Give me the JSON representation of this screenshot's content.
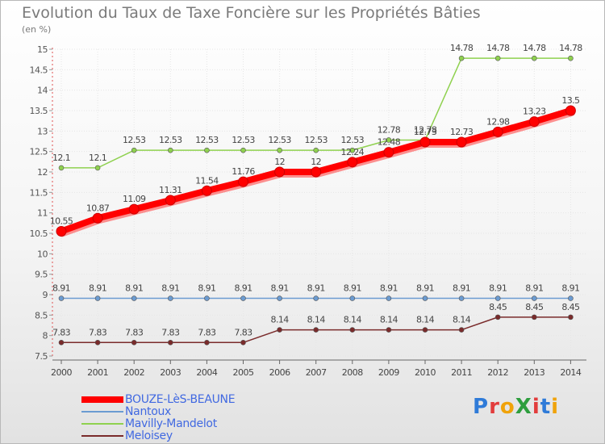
{
  "title": "Evolution du Taux de Taxe Foncière sur les Propriétés Bâties",
  "unit_label": "(en %)",
  "brand": {
    "text": "ProXiti",
    "colors": [
      "#2f7bd8",
      "#e23c3c",
      "#f0a30a",
      "#2e9e3e",
      "#e23c3c",
      "#2f7bd8",
      "#f0a30a"
    ]
  },
  "chart_data": {
    "type": "line",
    "title": "Evolution du Taux de Taxe Foncière sur les Propriétés Bâties",
    "ylabel": "(en %)",
    "xlabel": "",
    "ylim": [
      7.5,
      15
    ],
    "yticks": [
      "7.5",
      "8",
      "8.5",
      "9",
      "9.5",
      "10",
      "10.5",
      "11",
      "11.5",
      "12",
      "12.5",
      "13",
      "13.5",
      "14",
      "14.5",
      "15"
    ],
    "categories": [
      "2000",
      "2001",
      "2002",
      "2003",
      "2004",
      "2005",
      "2006",
      "2007",
      "2008",
      "2009",
      "2010",
      "2011",
      "2012",
      "2013",
      "2014"
    ],
    "grid": true,
    "series": [
      {
        "name": "BOUZE-LèS-BEAUNE",
        "color": "#ff0000",
        "legend_text_color": "#4169e1",
        "values": [
          10.55,
          10.87,
          11.09,
          11.31,
          11.54,
          11.76,
          12,
          12,
          12.24,
          12.48,
          12.73,
          12.73,
          12.98,
          13.23,
          13.5
        ],
        "labels": [
          "10.55",
          "10.87",
          "11.09",
          "11.31",
          "11.54",
          "11.76",
          "12",
          "12",
          "12.24",
          "12.48",
          "12.73",
          "12.73",
          "12.98",
          "13.23",
          "13.5"
        ]
      },
      {
        "name": "Nantoux",
        "color": "#6b9bd1",
        "legend_text_color": "#4169e1",
        "values": [
          8.91,
          8.91,
          8.91,
          8.91,
          8.91,
          8.91,
          8.91,
          8.91,
          8.91,
          8.91,
          8.91,
          8.91,
          8.91,
          8.91,
          8.91
        ],
        "labels": [
          "8.91",
          "8.91",
          "8.91",
          "8.91",
          "8.91",
          "8.91",
          "8.91",
          "8.91",
          "8.91",
          "8.91",
          "8.91",
          "8.91",
          "8.91",
          "8.91",
          "8.91"
        ]
      },
      {
        "name": "Mavilly-Mandelot",
        "color": "#8fd14f",
        "legend_text_color": "#4169e1",
        "values": [
          12.1,
          12.1,
          12.53,
          12.53,
          12.53,
          12.53,
          12.53,
          12.53,
          12.53,
          12.78,
          12.78,
          14.78,
          14.78,
          14.78,
          14.78
        ],
        "labels": [
          "12.1",
          "12.1",
          "12.53",
          "12.53",
          "12.53",
          "12.53",
          "12.53",
          "12.53",
          "12.53",
          "12.78",
          "12.78",
          "14.78",
          "14.78",
          "14.78",
          "14.78"
        ]
      },
      {
        "name": "Meloisey",
        "color": "#7a2b2b",
        "legend_text_color": "#4169e1",
        "values": [
          7.83,
          7.83,
          7.83,
          7.83,
          7.83,
          7.83,
          8.14,
          8.14,
          8.14,
          8.14,
          8.14,
          8.14,
          8.45,
          8.45,
          8.45
        ],
        "labels": [
          "7.83",
          "7.83",
          "7.83",
          "7.83",
          "7.83",
          "7.83",
          "8.14",
          "8.14",
          "8.14",
          "8.14",
          "8.14",
          "8.14",
          "8.45",
          "8.45",
          "8.45"
        ]
      }
    ]
  }
}
